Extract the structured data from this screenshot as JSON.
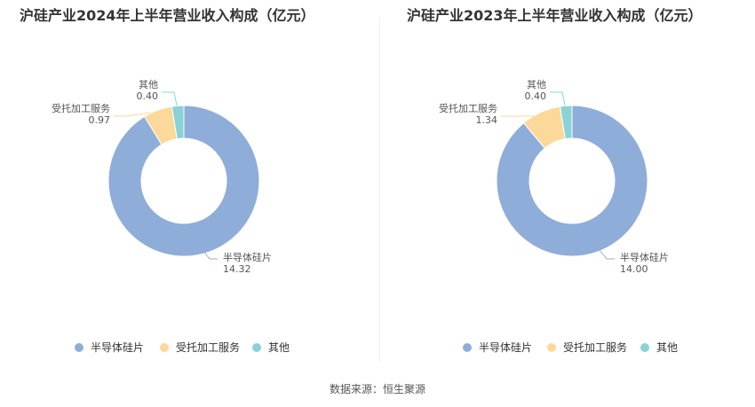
{
  "source": {
    "label": "数据来源：",
    "name": "恒生聚源"
  },
  "colors": {
    "半导体硅片": "#8fadd9",
    "受托加工服务": "#fcd89a",
    "其他": "#8ad2d6"
  },
  "chart_data": [
    {
      "type": "pie",
      "title": "沪硅产业2024年上半年营业收入构成（亿元）",
      "categories": [
        "半导体硅片",
        "受托加工服务",
        "其他"
      ],
      "values": [
        14.32,
        0.97,
        0.4
      ],
      "value_labels": [
        "14.32",
        "0.97",
        "0.40"
      ],
      "legend": {
        "position": "bottom",
        "entries": [
          "半导体硅片",
          "受托加工服务",
          "其他"
        ]
      }
    },
    {
      "type": "pie",
      "title": "沪硅产业2023年上半年营业收入构成（亿元）",
      "categories": [
        "半导体硅片",
        "受托加工服务",
        "其他"
      ],
      "values": [
        14.0,
        1.34,
        0.4
      ],
      "value_labels": [
        "14.00",
        "1.34",
        "0.40"
      ],
      "legend": {
        "position": "bottom",
        "entries": [
          "半导体硅片",
          "受托加工服务",
          "其他"
        ]
      }
    }
  ]
}
